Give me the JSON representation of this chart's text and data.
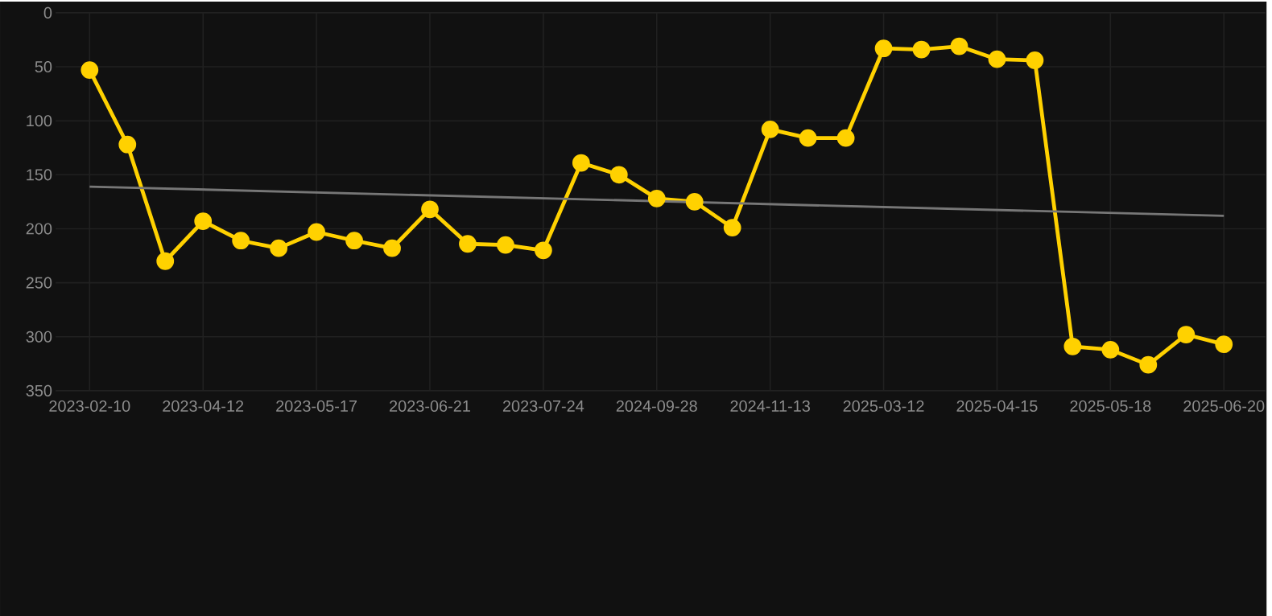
{
  "chart_data": {
    "type": "line",
    "categories": [
      "2023-02-10",
      null,
      null,
      "2023-04-12",
      null,
      null,
      "2023-05-17",
      null,
      null,
      "2023-06-21",
      null,
      null,
      "2023-07-24",
      null,
      null,
      "2024-09-28",
      null,
      null,
      "2024-11-13",
      null,
      null,
      "2025-03-12",
      null,
      null,
      "2025-04-15",
      null,
      null,
      "2025-05-18",
      null,
      null,
      "2025-06-20"
    ],
    "series": [
      {
        "color": "#ffd100",
        "marker": "circle",
        "values": [
          53,
          122,
          230,
          193,
          211,
          218,
          203,
          211,
          218,
          182,
          214,
          215,
          220,
          139,
          150,
          172,
          175,
          199,
          108,
          116,
          116,
          33,
          34,
          31,
          43,
          44,
          309,
          312,
          326,
          298,
          307
        ]
      },
      {
        "color": "#777777",
        "marker": "none",
        "values": [
          161,
          null,
          null,
          null,
          null,
          null,
          null,
          null,
          null,
          null,
          null,
          null,
          null,
          null,
          null,
          null,
          null,
          null,
          null,
          null,
          null,
          null,
          null,
          null,
          null,
          null,
          null,
          null,
          null,
          null,
          188
        ]
      }
    ],
    "ylim": [
      350,
      0
    ],
    "yticks": [
      0,
      50,
      100,
      150,
      200,
      250,
      300,
      350
    ],
    "grid": true,
    "line_style": "solid"
  }
}
